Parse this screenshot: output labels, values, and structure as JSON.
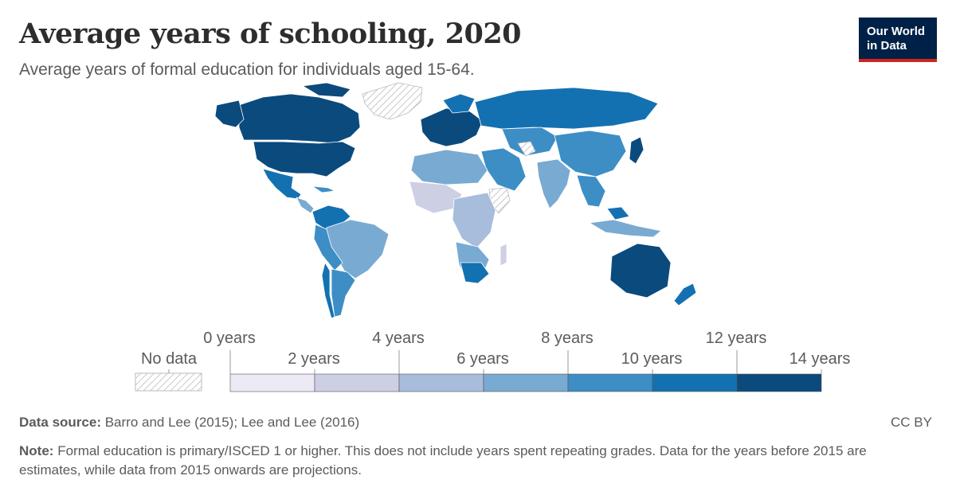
{
  "title": "Average years of schooling, 2020",
  "subtitle": "Average years of formal education for individuals aged 15-64.",
  "logo": {
    "line1": "Our World",
    "line2": "in Data"
  },
  "legend": {
    "no_data_label": "No data",
    "bins": [
      {
        "color": "#eceaf4"
      },
      {
        "color": "#cdcfe5"
      },
      {
        "color": "#a8bcdc"
      },
      {
        "color": "#79aad2"
      },
      {
        "color": "#3c8ec5"
      },
      {
        "color": "#1471b1"
      },
      {
        "color": "#0b4a7d"
      }
    ],
    "labels_top": [
      "0 years",
      "4 years",
      "8 years",
      "12 years"
    ],
    "labels_bottom": [
      "2 years",
      "6 years",
      "10 years",
      "14 years"
    ]
  },
  "footer": {
    "source_label": "Data source:",
    "source_text": "Barro and Lee (2015); Lee and Lee (2016)",
    "license": "CC BY",
    "note_label": "Note:",
    "note_text": "Formal education is primary/ISCED 1 or higher. This does not include years spent repeating grades. Data for the years before 2015 are estimates, while data from 2015 onwards are projections."
  },
  "chart_data": {
    "type": "choropleth",
    "year": 2020,
    "unit": "years",
    "bins": [
      0,
      2,
      4,
      6,
      8,
      10,
      12,
      14
    ],
    "regions": [
      {
        "name": "Canada",
        "years": 13.3
      },
      {
        "name": "United States",
        "years": 13.4
      },
      {
        "name": "Mexico",
        "years": 9.4
      },
      {
        "name": "Brazil",
        "years": 7.9
      },
      {
        "name": "Argentina",
        "years": 10.5
      },
      {
        "name": "Russia",
        "years": 12.0
      },
      {
        "name": "China",
        "years": 8.5
      },
      {
        "name": "India",
        "years": 6.6
      },
      {
        "name": "Australia",
        "years": 12.8
      },
      {
        "name": "South Africa",
        "years": 10.3
      },
      {
        "name": "Germany",
        "years": 13.9
      },
      {
        "name": "Japan",
        "years": 12.7
      }
    ]
  }
}
